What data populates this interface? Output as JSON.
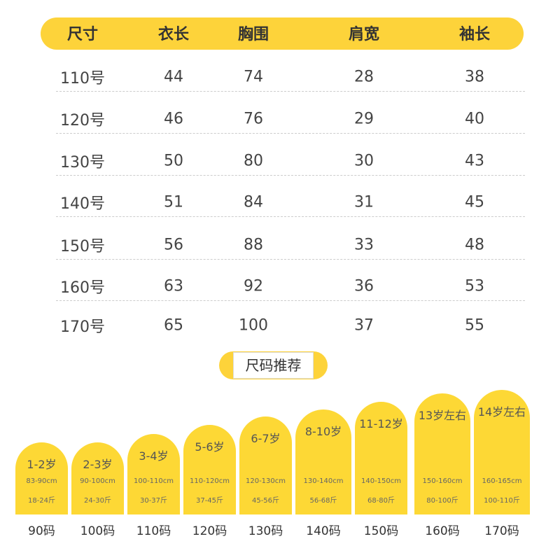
{
  "table": {
    "header": [
      "尺寸",
      "衣长",
      "胸围",
      "肩宽",
      "袖长"
    ],
    "rows": [
      [
        "110号",
        44,
        74,
        28,
        38
      ],
      [
        "120号",
        46,
        76,
        29,
        40
      ],
      [
        "130号",
        50,
        80,
        30,
        43
      ],
      [
        "140号",
        51,
        84,
        31,
        45
      ],
      [
        "150号",
        56,
        88,
        33,
        48
      ],
      [
        "160号",
        63,
        92,
        36,
        53
      ],
      [
        "170号",
        65,
        100,
        37,
        55
      ]
    ]
  },
  "recommend": {
    "title": "尺码推荐",
    "cards": [
      {
        "age": "1-2岁",
        "height": "83-90cm",
        "weight": "18-24斤",
        "size": "90码"
      },
      {
        "age": "2-3岁",
        "height": "90-100cm",
        "weight": "24-30斤",
        "size": "100码"
      },
      {
        "age": "3-4岁",
        "height": "100-110cm",
        "weight": "30-37斤",
        "size": "110码"
      },
      {
        "age": "5-6岁",
        "height": "110-120cm",
        "weight": "37-45斤",
        "size": "120码"
      },
      {
        "age": "6-7岁",
        "height": "120-130cm",
        "weight": "45-56斤",
        "size": "130码"
      },
      {
        "age": "8-10岁",
        "height": "130-140cm",
        "weight": "56-68斤",
        "size": "140码"
      },
      {
        "age": "11-12岁",
        "height": "140-150cm",
        "weight": "68-80斤",
        "size": "150码"
      },
      {
        "age": "13岁左右",
        "height": "150-160cm",
        "weight": "80-100斤",
        "size": "160码"
      },
      {
        "age": "14岁左右",
        "height": "160-165cm",
        "weight": "100-110斤",
        "size": "170码"
      }
    ]
  }
}
